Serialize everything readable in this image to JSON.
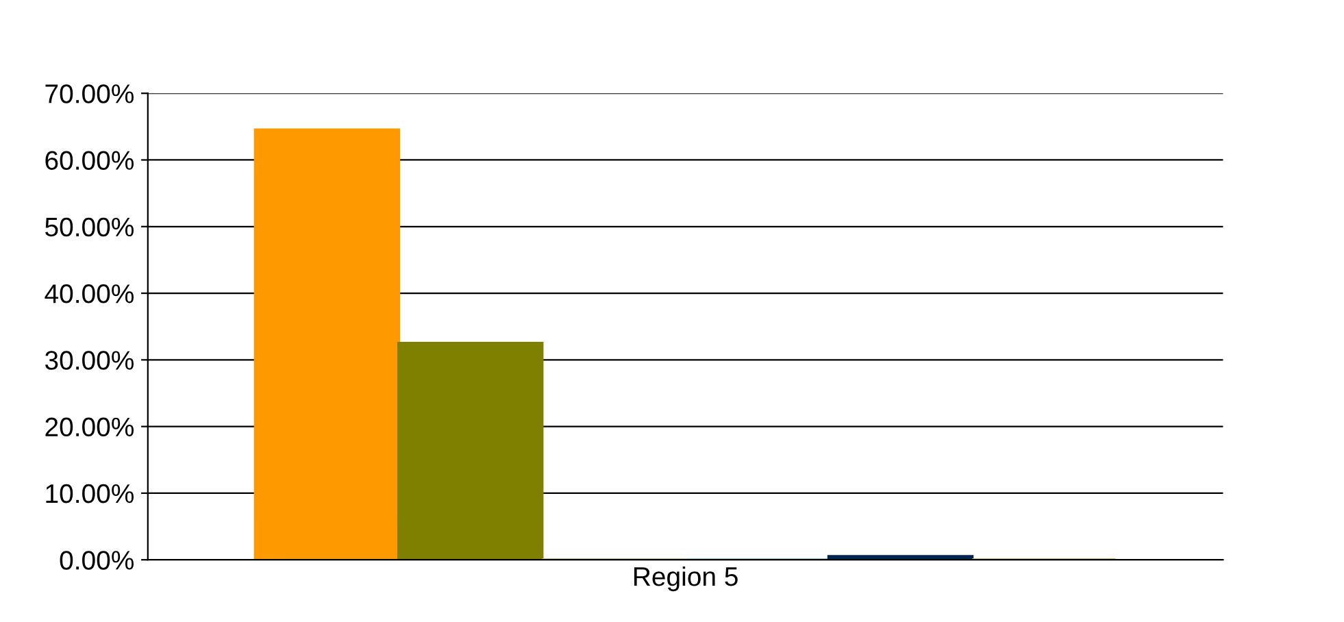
{
  "chart_data": {
    "type": "bar",
    "categories": [
      "Region 5"
    ],
    "series": [
      {
        "color": "#ff9900",
        "values": [
          64.5
        ]
      },
      {
        "color": "#808000",
        "values": [
          32.5
        ]
      },
      {
        "color": "#c0c09a",
        "values": [
          0
        ]
      },
      {
        "color": "#99c2c2",
        "values": [
          0
        ]
      },
      {
        "color": "#00264d",
        "values": [
          0.5
        ]
      },
      {
        "color": "#c0c070",
        "values": [
          0
        ]
      }
    ],
    "ylim": [
      0,
      70
    ],
    "yticks": [
      {
        "value": 0,
        "label": "0.00%"
      },
      {
        "value": 10,
        "label": "10.00%"
      },
      {
        "value": 20,
        "label": "20.00%"
      },
      {
        "value": 30,
        "label": "30.00%"
      },
      {
        "value": 40,
        "label": "40.00%"
      },
      {
        "value": 50,
        "label": "50.00%"
      },
      {
        "value": 60,
        "label": "60.00%"
      },
      {
        "value": 70,
        "label": "70.00%"
      }
    ],
    "grid": "y"
  }
}
